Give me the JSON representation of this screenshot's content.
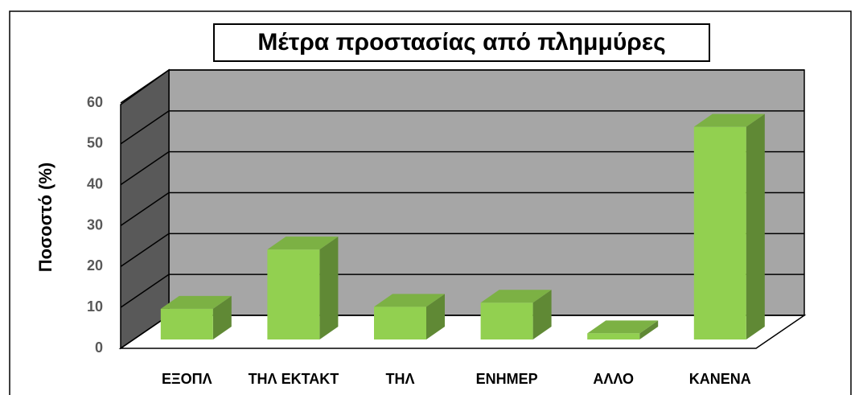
{
  "chart_data": {
    "type": "bar",
    "title": "Μέτρα προστασίας από πλημμύρες",
    "y_label": "Ποσοστό (%)",
    "categories": [
      "ΕΞΟΠΛ",
      "ΤΗΛ ΕΚΤΑΚΤ",
      "ΤΗΛ",
      "ΕΝΗΜΕΡ",
      "ΑΛΛΟ",
      "ΚΑΝΕΝΑ"
    ],
    "values": [
      7.5,
      22,
      8,
      9,
      1.5,
      52
    ],
    "color": "#92d050",
    "ylim": [
      0,
      60
    ],
    "yticks": [
      0,
      10,
      20,
      30,
      40,
      50,
      60
    ],
    "grid": true
  }
}
